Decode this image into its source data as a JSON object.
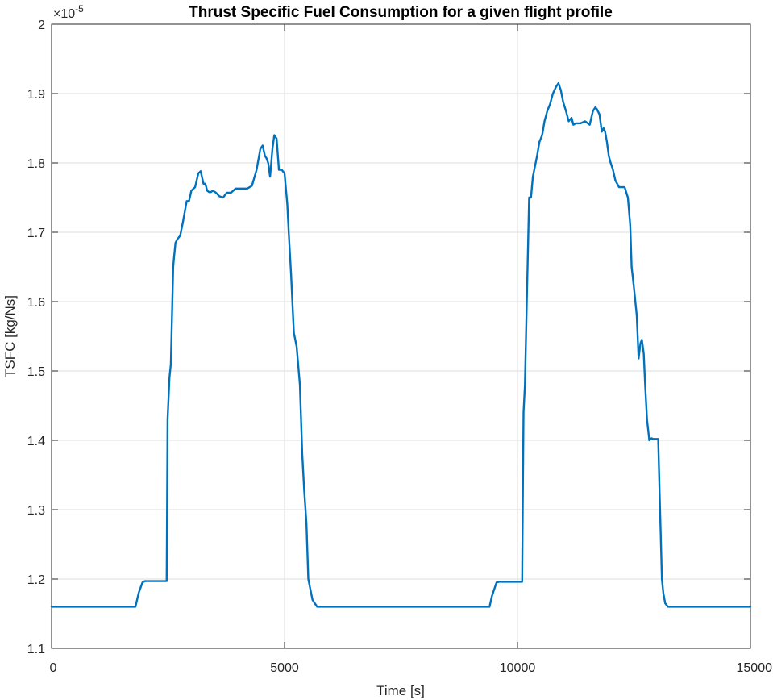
{
  "chart_data": {
    "type": "line",
    "title": "Thrust Specific Fuel Consumption for a given flight profile",
    "xlabel": "Time [s]",
    "ylabel": "TSFC [kg/Ns]",
    "xlim": [
      0,
      15000
    ],
    "ylim": [
      1.1,
      2.0
    ],
    "y_exponent_label": "×10",
    "y_exponent_value": "-5",
    "xticks": [
      0,
      5000,
      10000,
      15000
    ],
    "xtick_labels": [
      "0",
      "5000",
      "10000",
      "15000"
    ],
    "yticks": [
      1.1,
      1.2,
      1.3,
      1.4,
      1.5,
      1.6,
      1.7,
      1.8,
      1.9,
      2.0
    ],
    "ytick_labels": [
      "1.1",
      "1.2",
      "1.3",
      "1.4",
      "1.5",
      "1.6",
      "1.7",
      "1.8",
      "1.9",
      "2"
    ],
    "grid": true,
    "series": [
      {
        "color": "#0072BD",
        "x": [
          0,
          1800,
          1870,
          1950,
          2000,
          2470,
          2490,
          2530,
          2560,
          2610,
          2630,
          2660,
          2700,
          2760,
          2820,
          2900,
          2950,
          3000,
          3080,
          3150,
          3200,
          3260,
          3300,
          3340,
          3380,
          3420,
          3460,
          3530,
          3600,
          3680,
          3760,
          3850,
          3950,
          4100,
          4200,
          4300,
          4400,
          4480,
          4530,
          4580,
          4610,
          4650,
          4690,
          4740,
          4780,
          4830,
          4880,
          4940,
          5000,
          5060,
          5090,
          5140,
          5200,
          5260,
          5330,
          5380,
          5420,
          5470,
          5510,
          5540,
          5600,
          5700,
          5800,
          6000,
          7000,
          8000,
          9000,
          9400,
          9450,
          9550,
          9600,
          10100,
          10130,
          10160,
          10200,
          10250,
          10290,
          10330,
          10360,
          10420,
          10470,
          10530,
          10580,
          10640,
          10700,
          10760,
          10830,
          10880,
          10930,
          10980,
          11040,
          11100,
          11160,
          11200,
          11250,
          11350,
          11450,
          11550,
          11620,
          11670,
          11700,
          11760,
          11810,
          11850,
          11880,
          11920,
          11960,
          12000,
          12050,
          12100,
          12180,
          12250,
          12300,
          12370,
          12420,
          12450,
          12500,
          12560,
          12600,
          12640,
          12670,
          12710,
          12740,
          12780,
          12830,
          12870,
          12910,
          13020,
          13060,
          13100,
          13130,
          13170,
          13230,
          13330,
          14000,
          15000
        ],
        "y": [
          1.16,
          1.16,
          1.18,
          1.195,
          1.197,
          1.197,
          1.43,
          1.49,
          1.51,
          1.65,
          1.665,
          1.685,
          1.69,
          1.695,
          1.715,
          1.745,
          1.745,
          1.76,
          1.765,
          1.785,
          1.788,
          1.77,
          1.77,
          1.76,
          1.758,
          1.758,
          1.76,
          1.757,
          1.752,
          1.75,
          1.757,
          1.757,
          1.763,
          1.763,
          1.763,
          1.767,
          1.79,
          1.82,
          1.825,
          1.81,
          1.807,
          1.8,
          1.78,
          1.82,
          1.84,
          1.835,
          1.79,
          1.79,
          1.785,
          1.74,
          1.7,
          1.64,
          1.555,
          1.535,
          1.48,
          1.38,
          1.33,
          1.28,
          1.2,
          1.19,
          1.17,
          1.16,
          1.16,
          1.16,
          1.16,
          1.16,
          1.16,
          1.16,
          1.175,
          1.195,
          1.196,
          1.196,
          1.44,
          1.48,
          1.6,
          1.75,
          1.75,
          1.78,
          1.79,
          1.81,
          1.83,
          1.84,
          1.86,
          1.875,
          1.885,
          1.9,
          1.91,
          1.915,
          1.905,
          1.888,
          1.875,
          1.86,
          1.865,
          1.855,
          1.857,
          1.857,
          1.86,
          1.855,
          1.875,
          1.88,
          1.878,
          1.87,
          1.845,
          1.85,
          1.845,
          1.83,
          1.81,
          1.8,
          1.79,
          1.775,
          1.765,
          1.765,
          1.765,
          1.75,
          1.71,
          1.65,
          1.62,
          1.58,
          1.518,
          1.54,
          1.545,
          1.525,
          1.48,
          1.43,
          1.4,
          1.403,
          1.402,
          1.402,
          1.3,
          1.2,
          1.18,
          1.165,
          1.16,
          1.16,
          1.16,
          1.16
        ]
      }
    ]
  }
}
